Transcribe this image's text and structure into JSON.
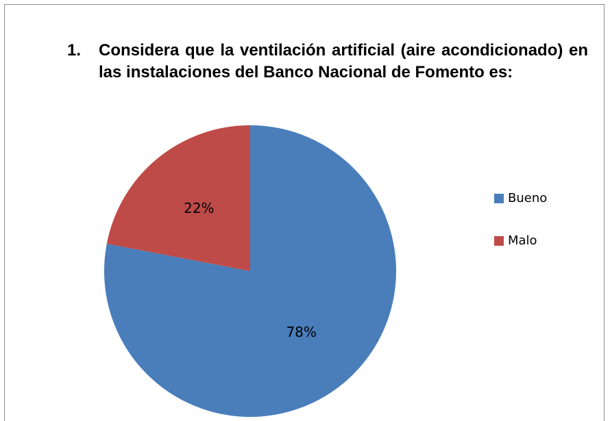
{
  "chart_data": {
    "type": "pie",
    "number": "1.",
    "title": "Considera que la ventilación artificial (aire acondicionado) en las instalaciones del Banco Nacional de Fomento es:",
    "categories": [
      "Bueno",
      "Malo"
    ],
    "values": [
      78,
      22
    ],
    "value_labels": [
      "78%",
      "22%"
    ],
    "colors": [
      "#4a7ebb",
      "#be4b48"
    ],
    "legend": "right"
  }
}
